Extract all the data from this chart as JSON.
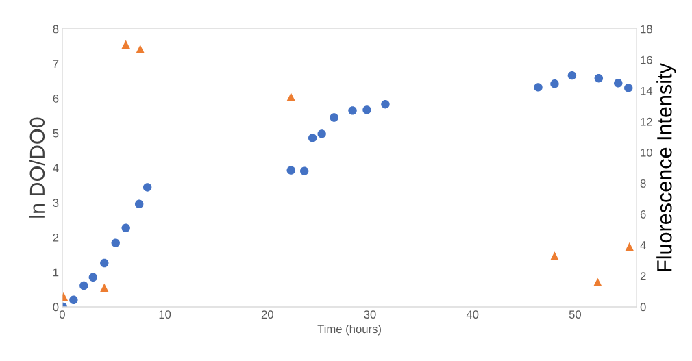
{
  "chart_data": {
    "type": "scatter",
    "xlabel": "Time (hours)",
    "ylabel": "ln DO/DO0",
    "y2label": "Fluorescence Intensity",
    "xlim": [
      0,
      56
    ],
    "xticks": [
      0,
      10,
      20,
      30,
      40,
      50
    ],
    "ylim": [
      0,
      8
    ],
    "yticks": [
      0,
      1,
      2,
      3,
      4,
      5,
      6,
      7,
      8
    ],
    "y2lim": [
      0,
      18
    ],
    "y2ticks": [
      0,
      2,
      4,
      6,
      8,
      10,
      12,
      14,
      16,
      18
    ],
    "grid": false,
    "legend": false,
    "series": [
      {
        "marker": "circle",
        "color": "#4472c4",
        "x": [
          0.07,
          1.1,
          2.1,
          3.0,
          4.1,
          5.2,
          6.2,
          7.5,
          8.3,
          22.3,
          23.6,
          24.4,
          25.3,
          26.5,
          28.3,
          29.7,
          31.5,
          46.4,
          48.0,
          49.7,
          52.3,
          54.2,
          55.2
        ],
        "values": [
          0,
          0.2,
          0.61,
          0.85,
          1.26,
          1.84,
          2.27,
          2.96,
          3.44,
          3.93,
          3.91,
          4.86,
          4.98,
          5.45,
          5.65,
          5.67,
          5.83,
          6.32,
          6.42,
          6.66,
          6.58,
          6.44,
          6.3
        ]
      },
      {
        "marker": "triangle",
        "axis": "y2",
        "color": "#ed7d31",
        "x": [
          0.13,
          4.1,
          6.2,
          7.6,
          22.3,
          48.0,
          52.2,
          55.3
        ],
        "values": [
          0.67,
          1.24,
          17.0,
          16.7,
          13.6,
          3.3,
          1.6,
          3.9
        ]
      }
    ]
  }
}
